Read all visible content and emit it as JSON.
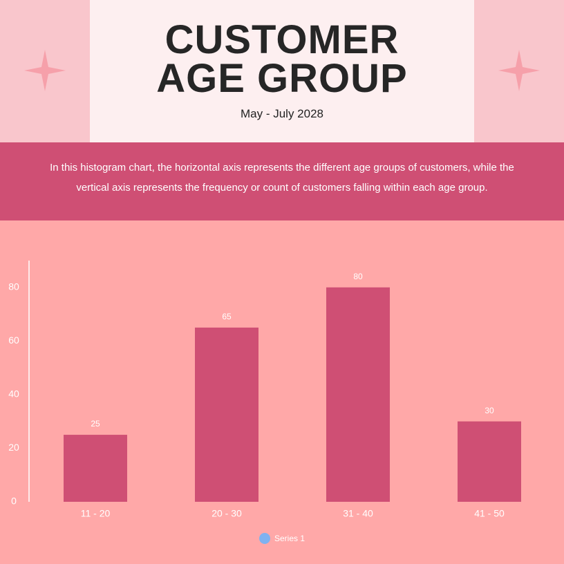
{
  "title": "CUSTOMER AGE GROUP",
  "subtitle": "May - July 2028",
  "description": "In this histogram chart, the horizontal axis represents the different age groups of customers, while the vertical axis represents the frequency or count of customers falling within each age group.",
  "chart_data": {
    "type": "bar",
    "categories": [
      "11 - 20",
      "20 - 30",
      "31 - 40",
      "41 - 50"
    ],
    "series": [
      {
        "name": "Series 1",
        "color": "#cf4f74",
        "values": [
          25,
          65,
          80,
          30
        ]
      }
    ],
    "legend_color": "#7fb2f0",
    "ylim": [
      0,
      90
    ],
    "yticks": [
      0,
      20,
      40,
      60,
      80
    ],
    "grid": false
  }
}
